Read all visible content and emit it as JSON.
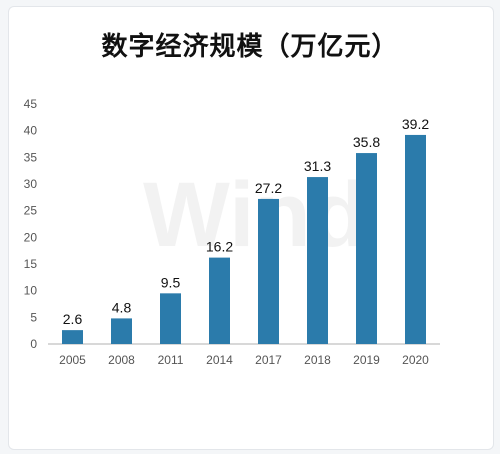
{
  "chart_data": {
    "type": "bar",
    "title": "数字经济规模（万亿元）",
    "categories": [
      "2005",
      "2008",
      "2011",
      "2014",
      "2017",
      "2018",
      "2019",
      "2020"
    ],
    "values": [
      2.6,
      4.8,
      9.5,
      16.2,
      27.2,
      31.3,
      35.8,
      39.2
    ],
    "data_labels": [
      "2.6",
      "4.8",
      "9.5",
      "16.2",
      "27.2",
      "31.3",
      "35.8",
      "39.2"
    ],
    "xlabel": "",
    "ylabel": "",
    "ylim": [
      0,
      45
    ],
    "yticks": [
      "0",
      "5",
      "10",
      "15",
      "20",
      "25",
      "30",
      "35",
      "40",
      "45"
    ],
    "grid": false,
    "bar_color": "#2b7bab",
    "watermark": "Wind"
  }
}
